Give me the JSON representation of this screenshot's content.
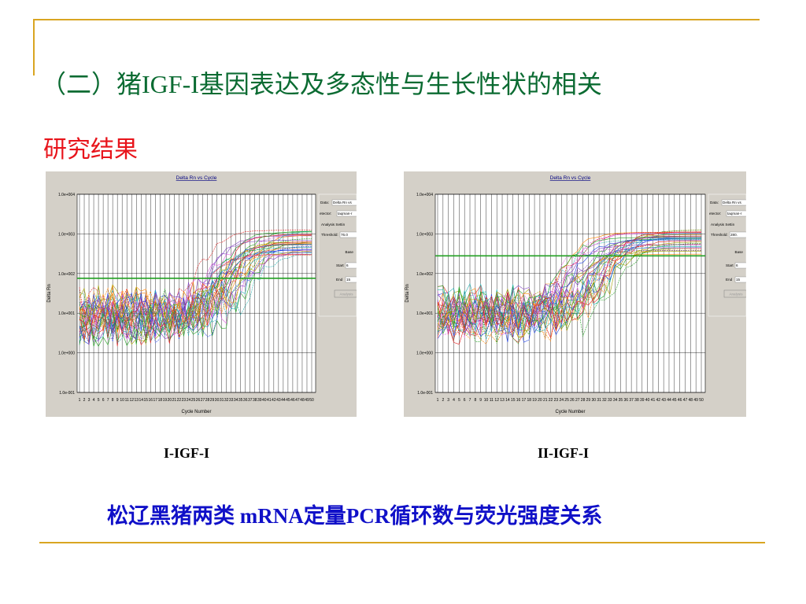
{
  "header": {
    "title": "（二）猪IGF-I基因表达及多态性与生长性状的相关",
    "subtitle": "研究结果"
  },
  "figures": [
    {
      "label": "I-IGF-I",
      "plot": {
        "title": "Delta Rn vs Cycle",
        "x_label": "Cycle Number",
        "y_label": "Delta Rn",
        "scale": "log",
        "ylim": [
          0.1,
          10000
        ],
        "yticks": [
          {
            "value": 10000,
            "label": "1.0e+004"
          },
          {
            "value": 1000,
            "label": "1.0e+003"
          },
          {
            "value": 100,
            "label": "1.0e+002"
          },
          {
            "value": 10,
            "label": "1.0e+001"
          },
          {
            "value": 1,
            "label": "1.0e+000"
          },
          {
            "value": 0.1,
            "label": "1.0e-001"
          }
        ],
        "xticks": [
          1,
          2,
          3,
          4,
          5,
          6,
          7,
          8,
          9,
          10,
          11,
          12,
          13,
          14,
          15,
          16,
          17,
          18,
          19,
          20,
          21,
          22,
          23,
          24,
          25,
          26,
          27,
          28,
          29,
          30,
          31,
          32,
          33,
          34,
          35,
          36,
          37,
          38,
          39,
          40,
          41,
          42,
          43,
          44,
          45,
          46,
          47,
          48,
          49,
          50
        ],
        "threshold": {
          "value": 76,
          "label": "76.0"
        },
        "side_panel": {
          "data": "Data:",
          "data_value": "Delta Rn vs",
          "detector": "etector:",
          "detector_value": "taqman-r",
          "analysis_settings": "Analysis Settin",
          "threshold": "Threshold:",
          "base": "Base",
          "start": "Start",
          "start_value": "6",
          "end": "End",
          "end_value": "15",
          "analysis": "Analysis"
        }
      }
    },
    {
      "label": "II-IGF-I",
      "plot": {
        "title": "Delta Rn vs Cycle",
        "x_label": "Cycle Number",
        "y_label": "Delta Rn",
        "scale": "log",
        "ylim": [
          0.1,
          10000
        ],
        "yticks": [
          {
            "value": 10000,
            "label": "1.0e+004"
          },
          {
            "value": 1000,
            "label": "1.0e+003"
          },
          {
            "value": 100,
            "label": "1.0e+002"
          },
          {
            "value": 10,
            "label": "1.0e+001"
          },
          {
            "value": 1,
            "label": "1.0e+000"
          },
          {
            "value": 0.1,
            "label": "1.0e-001"
          }
        ],
        "xticks": [
          1,
          2,
          3,
          4,
          5,
          6,
          7,
          8,
          9,
          10,
          11,
          12,
          13,
          14,
          15,
          16,
          17,
          18,
          19,
          20,
          21,
          22,
          23,
          24,
          25,
          26,
          27,
          28,
          29,
          30,
          31,
          32,
          33,
          34,
          35,
          36,
          37,
          38,
          39,
          40,
          41,
          42,
          43,
          44,
          45,
          46,
          47,
          48,
          49,
          50
        ],
        "threshold": {
          "value": 280,
          "label": "280."
        },
        "side_panel": {
          "data": "Data:",
          "data_value": "Delta Rn vs",
          "detector": "etector:",
          "detector_value": "taqman-r",
          "analysis_settings": "Analysis Settin",
          "threshold": "Threshold:",
          "base": "Base",
          "start": "Start",
          "start_value": "6",
          "end": "End",
          "end_value": "15",
          "analysis": "Analysis"
        }
      }
    }
  ],
  "caption": "松辽黑猪两类 mRNA定量PCR循环数与荧光强度关系"
}
